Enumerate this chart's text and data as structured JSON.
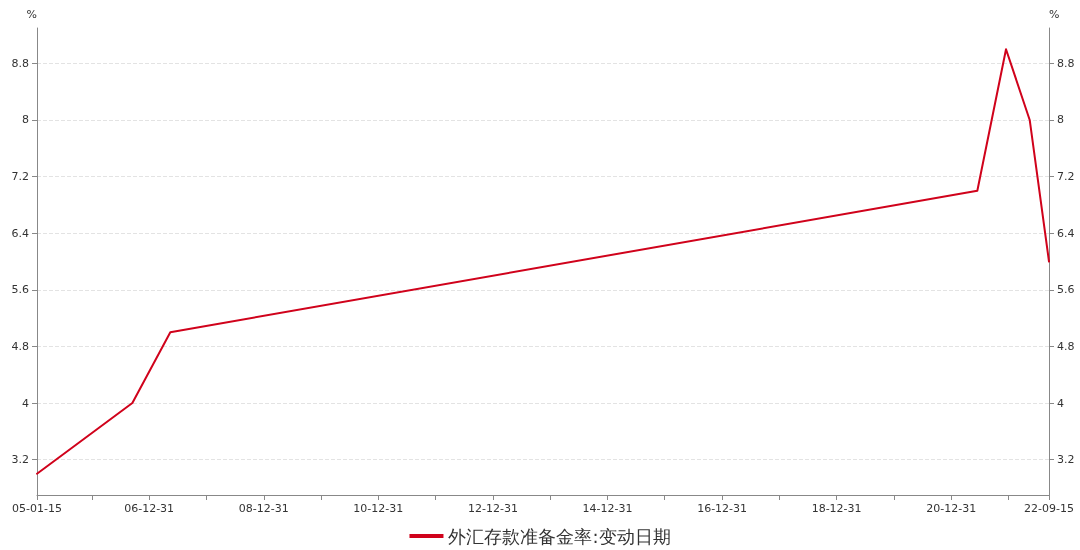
{
  "chart_data": {
    "type": "line",
    "ylabel": "%",
    "y2label": "%",
    "x": [
      "2005-01-15",
      "2006-09-15",
      "2007-05-15",
      "2021-06-15",
      "2021-12-15",
      "2022-05-15",
      "2022-09-15"
    ],
    "series": [
      {
        "name": "外汇存款准备金率:变动日期",
        "color": "#d0021b",
        "values": [
          3,
          4,
          5,
          7,
          9,
          8,
          6
        ]
      }
    ],
    "xlim": [
      "2005-01-15",
      "2022-09-15"
    ],
    "xticks": [
      {
        "value": "2005-01-15",
        "label": "05-01-15"
      },
      {
        "value": "2005-12-31",
        "label": null
      },
      {
        "value": "2006-12-31",
        "label": "06-12-31"
      },
      {
        "value": "2007-12-31",
        "label": null
      },
      {
        "value": "2008-12-31",
        "label": "08-12-31"
      },
      {
        "value": "2009-12-31",
        "label": null
      },
      {
        "value": "2010-12-31",
        "label": "10-12-31"
      },
      {
        "value": "2011-12-31",
        "label": null
      },
      {
        "value": "2012-12-31",
        "label": "12-12-31"
      },
      {
        "value": "2013-12-31",
        "label": null
      },
      {
        "value": "2014-12-31",
        "label": "14-12-31"
      },
      {
        "value": "2015-12-31",
        "label": null
      },
      {
        "value": "2016-12-31",
        "label": "16-12-31"
      },
      {
        "value": "2017-12-31",
        "label": null
      },
      {
        "value": "2018-12-31",
        "label": "18-12-31"
      },
      {
        "value": "2019-12-31",
        "label": null
      },
      {
        "value": "2020-12-31",
        "label": "20-12-31"
      },
      {
        "value": "2021-12-31",
        "label": null
      },
      {
        "value": "2022-09-15",
        "label": "22-09-15"
      }
    ],
    "ylim": [
      2.7,
      9.3
    ],
    "yticks": [
      3.2,
      4,
      4.8,
      5.6,
      6.4,
      7.2,
      8,
      8.8
    ],
    "y2lim": [
      2.7,
      9.3
    ],
    "y2ticks": [
      3.2,
      4,
      4.8,
      5.6,
      6.4,
      7.2,
      8,
      8.8
    ],
    "grid": "y",
    "legend": "bottom",
    "marker": "none",
    "line_style": "solid"
  }
}
